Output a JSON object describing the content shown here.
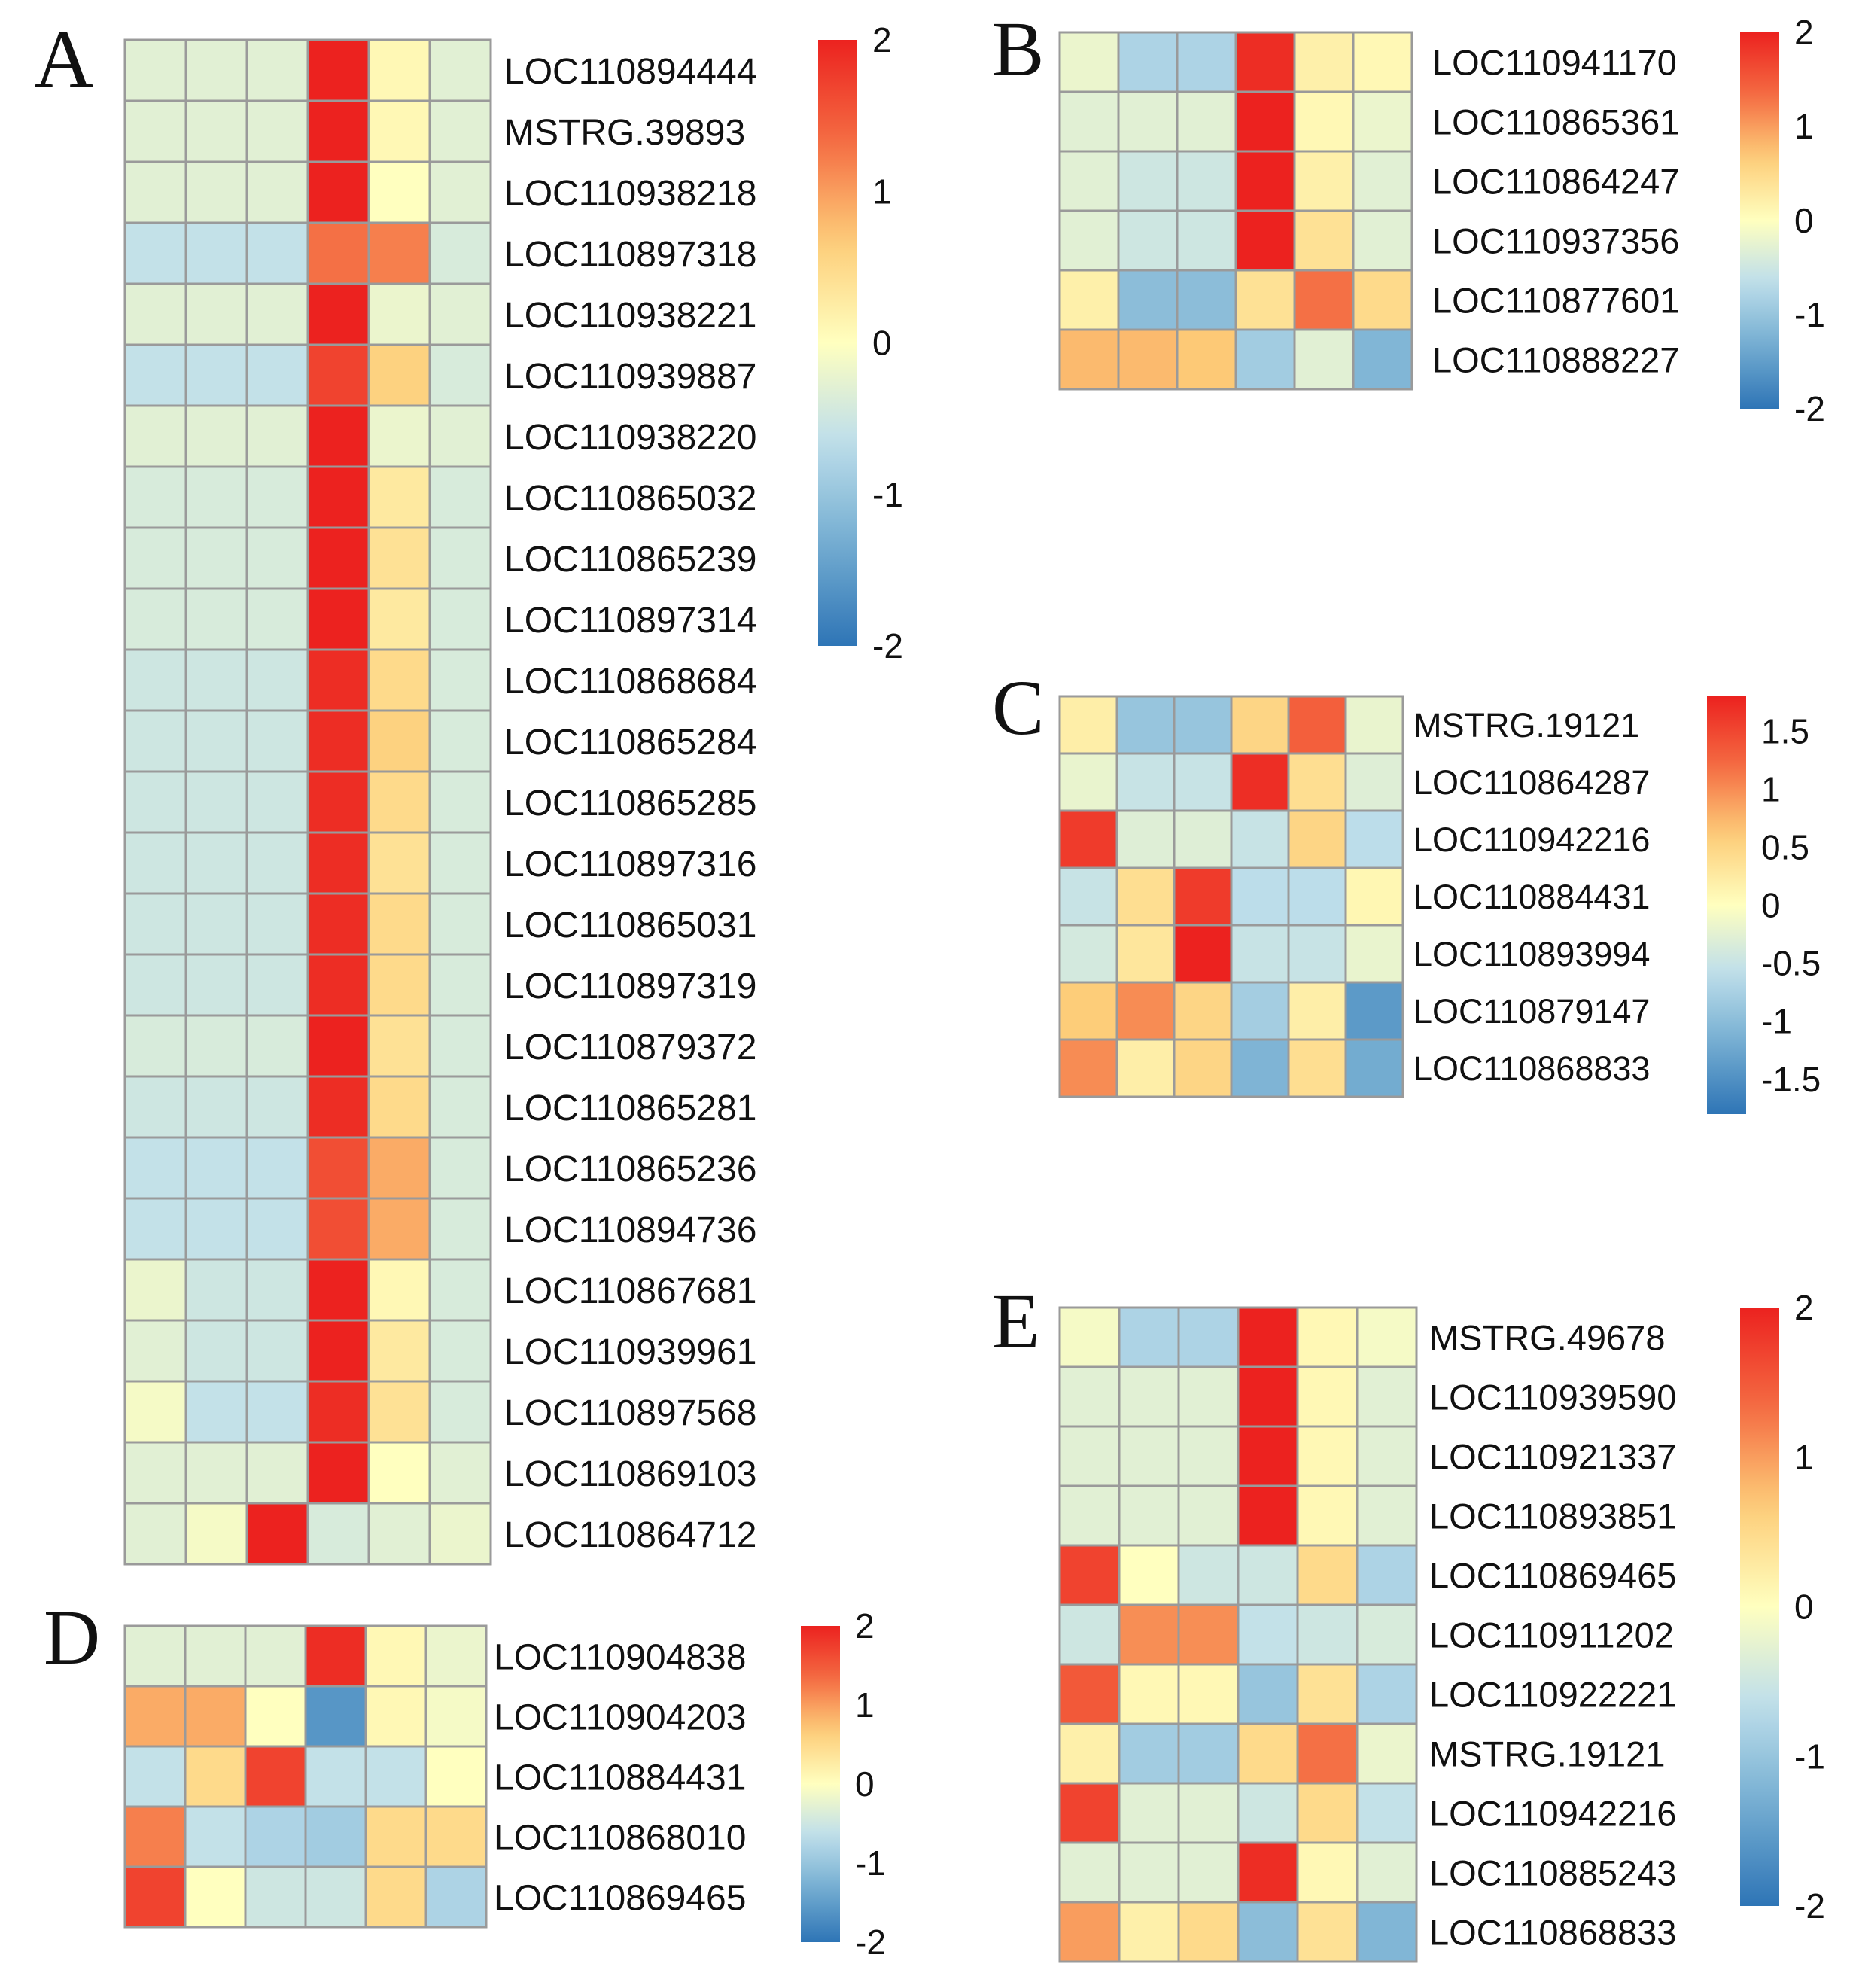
{
  "chart_data": [
    {
      "panel": "A",
      "type": "heatmap",
      "columns": 6,
      "colorbar": {
        "min": -2,
        "max": 2,
        "ticks": [
          2,
          1,
          0,
          -1,
          -2
        ],
        "tick_labels": [
          "2",
          "1",
          "0",
          "-1",
          "-2"
        ]
      },
      "rows": [
        {
          "label": "LOC110894444",
          "values": [
            -0.3,
            -0.3,
            -0.3,
            2.0,
            0.1,
            -0.3
          ]
        },
        {
          "label": "MSTRG.39893",
          "values": [
            -0.3,
            -0.3,
            -0.3,
            2.0,
            0.1,
            -0.3
          ]
        },
        {
          "label": "LOC110938218",
          "values": [
            -0.3,
            -0.3,
            -0.3,
            2.0,
            0.0,
            -0.3
          ]
        },
        {
          "label": "LOC110897318",
          "values": [
            -0.6,
            -0.6,
            -0.6,
            1.3,
            1.2,
            -0.4
          ]
        },
        {
          "label": "LOC110938221",
          "values": [
            -0.3,
            -0.3,
            -0.3,
            2.0,
            -0.2,
            -0.3
          ]
        },
        {
          "label": "LOC110939887",
          "values": [
            -0.6,
            -0.6,
            -0.6,
            1.7,
            0.6,
            -0.4
          ]
        },
        {
          "label": "LOC110938220",
          "values": [
            -0.3,
            -0.3,
            -0.3,
            2.0,
            -0.2,
            -0.3
          ]
        },
        {
          "label": "LOC110865032",
          "values": [
            -0.4,
            -0.4,
            -0.4,
            2.0,
            0.3,
            -0.4
          ]
        },
        {
          "label": "LOC110865239",
          "values": [
            -0.4,
            -0.4,
            -0.4,
            2.0,
            0.4,
            -0.4
          ]
        },
        {
          "label": "LOC110897314",
          "values": [
            -0.4,
            -0.4,
            -0.4,
            2.0,
            0.3,
            -0.4
          ]
        },
        {
          "label": "LOC110868684",
          "values": [
            -0.5,
            -0.5,
            -0.5,
            1.9,
            0.5,
            -0.4
          ]
        },
        {
          "label": "LOC110865284",
          "values": [
            -0.5,
            -0.5,
            -0.5,
            1.9,
            0.6,
            -0.4
          ]
        },
        {
          "label": "LOC110865285",
          "values": [
            -0.5,
            -0.5,
            -0.5,
            1.9,
            0.5,
            -0.4
          ]
        },
        {
          "label": "LOC110897316",
          "values": [
            -0.5,
            -0.5,
            -0.5,
            1.9,
            0.4,
            -0.4
          ]
        },
        {
          "label": "LOC110865031",
          "values": [
            -0.5,
            -0.5,
            -0.5,
            1.9,
            0.5,
            -0.4
          ]
        },
        {
          "label": "LOC110897319",
          "values": [
            -0.5,
            -0.5,
            -0.5,
            1.9,
            0.5,
            -0.4
          ]
        },
        {
          "label": "LOC110879372",
          "values": [
            -0.4,
            -0.4,
            -0.4,
            2.0,
            0.4,
            -0.4
          ]
        },
        {
          "label": "LOC110865281",
          "values": [
            -0.5,
            -0.5,
            -0.5,
            1.9,
            0.5,
            -0.4
          ]
        },
        {
          "label": "LOC110865236",
          "values": [
            -0.6,
            -0.6,
            -0.6,
            1.6,
            0.9,
            -0.4
          ]
        },
        {
          "label": "LOC110894736",
          "values": [
            -0.6,
            -0.6,
            -0.6,
            1.6,
            0.9,
            -0.4
          ]
        },
        {
          "label": "LOC110867681",
          "values": [
            -0.2,
            -0.5,
            -0.5,
            2.0,
            0.1,
            -0.4
          ]
        },
        {
          "label": "LOC110939961",
          "values": [
            -0.3,
            -0.5,
            -0.5,
            2.0,
            0.3,
            -0.4
          ]
        },
        {
          "label": "LOC110897568",
          "values": [
            -0.1,
            -0.6,
            -0.6,
            1.9,
            0.4,
            -0.4
          ]
        },
        {
          "label": "LOC110869103",
          "values": [
            -0.3,
            -0.3,
            -0.3,
            2.0,
            0.0,
            -0.3
          ]
        },
        {
          "label": "LOC110864712",
          "values": [
            -0.3,
            -0.1,
            2.0,
            -0.4,
            -0.3,
            -0.2
          ]
        }
      ]
    },
    {
      "panel": "B",
      "type": "heatmap",
      "columns": 6,
      "colorbar": {
        "min": -2,
        "max": 2,
        "ticks": [
          2,
          1,
          0,
          -1,
          -2
        ],
        "tick_labels": [
          "2",
          "1",
          "0",
          "-1",
          "-2"
        ]
      },
      "rows": [
        {
          "label": "LOC110941170",
          "values": [
            -0.2,
            -0.8,
            -0.8,
            1.9,
            0.2,
            0.1
          ]
        },
        {
          "label": "LOC110865361",
          "values": [
            -0.3,
            -0.3,
            -0.3,
            2.0,
            0.1,
            -0.2
          ]
        },
        {
          "label": "LOC110864247",
          "values": [
            -0.3,
            -0.5,
            -0.5,
            2.0,
            0.2,
            -0.3
          ]
        },
        {
          "label": "LOC110937356",
          "values": [
            -0.3,
            -0.5,
            -0.5,
            2.0,
            0.4,
            -0.3
          ]
        },
        {
          "label": "LOC110877601",
          "values": [
            0.2,
            -1.1,
            -1.1,
            0.4,
            1.3,
            0.5
          ]
        },
        {
          "label": "LOC110888227",
          "values": [
            0.8,
            0.8,
            0.7,
            -0.9,
            -0.3,
            -1.2
          ]
        }
      ]
    },
    {
      "panel": "C",
      "type": "heatmap",
      "columns": 6,
      "colorbar": {
        "min": -1.8,
        "max": 1.8,
        "ticks": [
          1.5,
          1,
          0.5,
          0,
          -0.5,
          -1,
          -1.5
        ],
        "tick_labels": [
          "1.5",
          "1",
          "0.5",
          "0",
          "-0.5",
          "-1",
          "-1.5"
        ]
      },
      "rows": [
        {
          "label": "MSTRG.19121",
          "values": [
            0.2,
            -0.9,
            -0.9,
            0.5,
            1.3,
            -0.2
          ]
        },
        {
          "label": "LOC110864287",
          "values": [
            -0.2,
            -0.5,
            -0.5,
            1.7,
            0.4,
            -0.3
          ]
        },
        {
          "label": "LOC110942216",
          "values": [
            1.6,
            -0.3,
            -0.3,
            -0.5,
            0.5,
            -0.6
          ]
        },
        {
          "label": "LOC110884431",
          "values": [
            -0.5,
            0.4,
            1.6,
            -0.6,
            -0.6,
            0.1
          ]
        },
        {
          "label": "LOC110893994",
          "values": [
            -0.4,
            0.3,
            1.8,
            -0.5,
            -0.5,
            -0.2
          ]
        },
        {
          "label": "LOC110879147",
          "values": [
            0.6,
            1.0,
            0.5,
            -0.8,
            0.2,
            -1.4
          ]
        },
        {
          "label": "LOC110868833",
          "values": [
            1.0,
            0.2,
            0.5,
            -1.1,
            0.4,
            -1.2
          ]
        }
      ]
    },
    {
      "panel": "D",
      "type": "heatmap",
      "columns": 6,
      "colorbar": {
        "min": -2,
        "max": 2,
        "ticks": [
          2,
          1,
          0,
          -1,
          -2
        ],
        "tick_labels": [
          "2",
          "1",
          "0",
          "-1",
          "-2"
        ]
      },
      "rows": [
        {
          "label": "LOC110904838",
          "values": [
            -0.3,
            -0.3,
            -0.3,
            1.9,
            0.1,
            -0.2
          ]
        },
        {
          "label": "LOC110904203",
          "values": [
            0.9,
            0.9,
            0.0,
            -1.6,
            0.1,
            -0.1
          ]
        },
        {
          "label": "LOC110884431",
          "values": [
            -0.6,
            0.5,
            1.7,
            -0.6,
            -0.6,
            0.0
          ]
        },
        {
          "label": "LOC110868010",
          "values": [
            1.2,
            -0.6,
            -0.8,
            -0.9,
            0.5,
            0.5
          ]
        },
        {
          "label": "LOC110869465",
          "values": [
            1.7,
            0.0,
            -0.5,
            -0.5,
            0.5,
            -0.8
          ]
        }
      ]
    },
    {
      "panel": "E",
      "type": "heatmap",
      "columns": 6,
      "colorbar": {
        "min": -2,
        "max": 2,
        "ticks": [
          2,
          1,
          0,
          -1,
          -2
        ],
        "tick_labels": [
          "2",
          "1",
          "0",
          "-1",
          "-2"
        ]
      },
      "rows": [
        {
          "label": "MSTRG.49678",
          "values": [
            -0.1,
            -0.8,
            -0.8,
            2.0,
            0.1,
            -0.1
          ]
        },
        {
          "label": "LOC110939590",
          "values": [
            -0.3,
            -0.3,
            -0.3,
            2.0,
            0.1,
            -0.3
          ]
        },
        {
          "label": "LOC110921337",
          "values": [
            -0.3,
            -0.3,
            -0.3,
            2.0,
            0.1,
            -0.3
          ]
        },
        {
          "label": "LOC110893851",
          "values": [
            -0.3,
            -0.3,
            -0.3,
            2.0,
            0.1,
            -0.3
          ]
        },
        {
          "label": "LOC110869465",
          "values": [
            1.7,
            0.0,
            -0.5,
            -0.5,
            0.5,
            -0.8
          ]
        },
        {
          "label": "LOC110911202",
          "values": [
            -0.5,
            1.1,
            1.1,
            -0.6,
            -0.5,
            -0.4
          ]
        },
        {
          "label": "LOC110922221",
          "values": [
            1.5,
            0.1,
            0.1,
            -1.0,
            0.4,
            -0.8
          ]
        },
        {
          "label": "MSTRG.19121",
          "values": [
            0.2,
            -0.9,
            -0.9,
            0.5,
            1.3,
            -0.2
          ]
        },
        {
          "label": "LOC110942216",
          "values": [
            1.7,
            -0.3,
            -0.3,
            -0.5,
            0.5,
            -0.6
          ]
        },
        {
          "label": "LOC110885243",
          "values": [
            -0.3,
            -0.3,
            -0.3,
            1.9,
            0.1,
            -0.3
          ]
        },
        {
          "label": "LOC110868833",
          "values": [
            1.0,
            0.2,
            0.5,
            -1.1,
            0.4,
            -1.2
          ]
        }
      ]
    }
  ]
}
